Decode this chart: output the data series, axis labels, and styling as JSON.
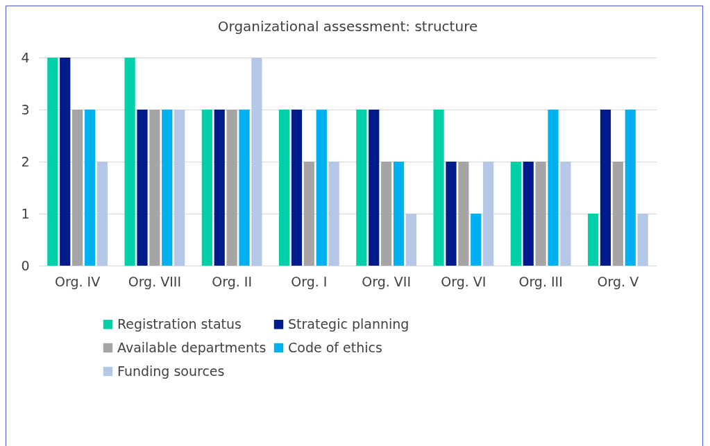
{
  "chart_data": {
    "type": "bar",
    "title": "Organizational assessment: structure",
    "categories": [
      "Org. IV",
      "Org. VIII",
      "Org. II",
      "Org. I",
      "Org. VII",
      "Org. VI",
      "Org. III",
      "Org. V"
    ],
    "series": [
      {
        "name": "Registration status",
        "color": "#00cfa8",
        "values": [
          4,
          4,
          3,
          3,
          3,
          3,
          2,
          1
        ]
      },
      {
        "name": "Strategic planning",
        "color": "#001c8c",
        "values": [
          4,
          3,
          3,
          3,
          3,
          2,
          2,
          3
        ]
      },
      {
        "name": "Available departments",
        "color": "#a5a5a5",
        "values": [
          3,
          3,
          3,
          2,
          2,
          2,
          2,
          2
        ]
      },
      {
        "name": "Code of ethics",
        "color": "#00b0f0",
        "values": [
          3,
          3,
          3,
          3,
          2,
          1,
          3,
          3
        ]
      },
      {
        "name": "Funding sources",
        "color": "#b4c7e7",
        "values": [
          2,
          3,
          4,
          2,
          1,
          2,
          2,
          1
        ]
      }
    ],
    "ylim": [
      0,
      4
    ],
    "yticks": [
      0,
      1,
      2,
      3,
      4
    ],
    "grid": "y",
    "legend": "bottom"
  }
}
